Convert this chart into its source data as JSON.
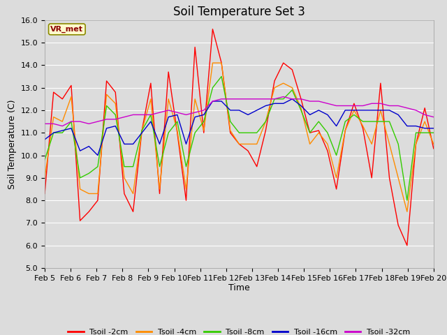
{
  "title": "Soil Temperature Set 3",
  "xlabel": "Time",
  "ylabel": "Soil Temperature (C)",
  "ylim": [
    5.0,
    16.0
  ],
  "yticks": [
    5.0,
    6.0,
    7.0,
    8.0,
    9.0,
    10.0,
    11.0,
    12.0,
    13.0,
    14.0,
    15.0,
    16.0
  ],
  "xtick_labels": [
    "Feb 5",
    "Feb 6",
    "Feb 7",
    "Feb 8",
    "Feb 9",
    "Feb 10",
    "Feb 11",
    "Feb 12",
    "Feb 13",
    "Feb 14",
    "Feb 15",
    "Feb 16",
    "Feb 17",
    "Feb 18",
    "Feb 19",
    "Feb 20"
  ],
  "legend_label": "VR_met",
  "series": {
    "Tsoil -2cm": {
      "color": "#FF0000",
      "values": [
        8.3,
        12.8,
        12.5,
        13.1,
        7.1,
        7.5,
        8.0,
        13.3,
        12.8,
        8.3,
        7.5,
        11.1,
        13.2,
        8.3,
        13.7,
        11.0,
        8.0,
        14.8,
        11.0,
        15.6,
        14.1,
        11.0,
        10.5,
        10.2,
        9.5,
        11.1,
        13.3,
        14.1,
        13.8,
        12.5,
        11.0,
        11.1,
        10.2,
        8.5,
        11.1,
        12.3,
        11.2,
        9.0,
        13.2,
        9.0,
        6.9,
        6.0,
        10.5,
        12.1,
        10.3
      ]
    },
    "Tsoil -4cm": {
      "color": "#FF8C00",
      "values": [
        9.0,
        11.7,
        11.5,
        12.6,
        8.5,
        8.3,
        8.3,
        12.7,
        12.3,
        9.0,
        8.3,
        11.1,
        12.5,
        8.5,
        12.5,
        11.1,
        8.5,
        12.5,
        11.1,
        14.1,
        14.1,
        11.1,
        10.5,
        10.5,
        10.5,
        11.5,
        13.0,
        13.2,
        13.0,
        12.1,
        10.5,
        11.0,
        10.5,
        9.0,
        11.1,
        12.0,
        11.3,
        10.5,
        12.0,
        10.5,
        9.0,
        7.5,
        10.5,
        11.5,
        10.5
      ]
    },
    "Tsoil -8cm": {
      "color": "#33CC00",
      "values": [
        9.8,
        11.0,
        11.0,
        11.5,
        9.0,
        9.2,
        9.5,
        12.2,
        11.8,
        9.5,
        9.5,
        11.1,
        11.8,
        9.5,
        11.0,
        11.5,
        9.5,
        11.0,
        11.5,
        13.0,
        13.5,
        11.5,
        11.0,
        11.0,
        11.0,
        11.5,
        12.5,
        12.5,
        12.9,
        12.0,
        11.0,
        11.5,
        11.0,
        10.0,
        11.5,
        11.8,
        11.5,
        11.5,
        11.5,
        11.5,
        10.5,
        8.0,
        11.0,
        11.0,
        11.0
      ]
    },
    "Tsoil -16cm": {
      "color": "#0000CC",
      "values": [
        10.7,
        11.0,
        11.1,
        11.2,
        10.2,
        10.4,
        10.0,
        11.2,
        11.3,
        10.5,
        10.5,
        11.0,
        11.5,
        10.5,
        11.7,
        11.8,
        10.5,
        11.7,
        11.8,
        12.4,
        12.4,
        12.0,
        12.0,
        11.8,
        12.0,
        12.2,
        12.3,
        12.3,
        12.5,
        12.2,
        11.8,
        12.0,
        11.8,
        11.3,
        12.0,
        12.0,
        12.0,
        12.0,
        12.0,
        12.0,
        11.8,
        11.3,
        11.3,
        11.2,
        11.2
      ]
    },
    "Tsoil -32cm": {
      "color": "#CC00CC",
      "values": [
        11.4,
        11.4,
        11.3,
        11.5,
        11.5,
        11.4,
        11.5,
        11.6,
        11.6,
        11.7,
        11.8,
        11.8,
        11.8,
        11.9,
        12.0,
        11.9,
        11.8,
        11.9,
        12.0,
        12.4,
        12.5,
        12.5,
        12.5,
        12.5,
        12.5,
        12.5,
        12.5,
        12.6,
        12.5,
        12.5,
        12.4,
        12.4,
        12.3,
        12.2,
        12.2,
        12.2,
        12.2,
        12.3,
        12.3,
        12.2,
        12.2,
        12.1,
        12.0,
        11.8,
        11.7
      ]
    }
  },
  "n_points": 45,
  "background_color": "#DCDCDC",
  "plot_bg_color": "#DCDCDC",
  "grid_color": "#FFFFFF",
  "title_fontsize": 12,
  "axis_label_fontsize": 9,
  "tick_fontsize": 8
}
